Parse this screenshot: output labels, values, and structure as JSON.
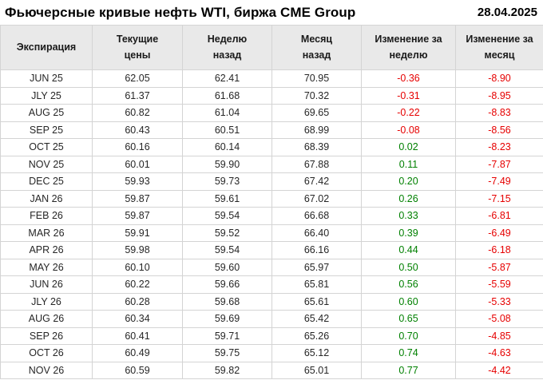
{
  "header": {
    "title": "Фьючерсные кривые нефть WTI, биржа CME Group",
    "date": "28.04.2025"
  },
  "colors": {
    "positive": "#008000",
    "negative": "#e60000",
    "header_bg": "#e9e9e9",
    "border": "#d4d4d4"
  },
  "table": {
    "columns": [
      "Экспирация",
      "Текущие\nцены",
      "Неделю\nназад",
      "Месяц\nназад",
      "Изменение за\nнеделю",
      "Изменение за\nмесяц"
    ],
    "rows": [
      [
        "JUN 25",
        "62.05",
        "62.41",
        "70.95",
        "-0.36",
        "-8.90"
      ],
      [
        "JLY 25",
        "61.37",
        "61.68",
        "70.32",
        "-0.31",
        "-8.95"
      ],
      [
        "AUG 25",
        "60.82",
        "61.04",
        "69.65",
        "-0.22",
        "-8.83"
      ],
      [
        "SEP 25",
        "60.43",
        "60.51",
        "68.99",
        "-0.08",
        "-8.56"
      ],
      [
        "OCT 25",
        "60.16",
        "60.14",
        "68.39",
        "0.02",
        "-8.23"
      ],
      [
        "NOV 25",
        "60.01",
        "59.90",
        "67.88",
        "0.11",
        "-7.87"
      ],
      [
        "DEC 25",
        "59.93",
        "59.73",
        "67.42",
        "0.20",
        "-7.49"
      ],
      [
        "JAN 26",
        "59.87",
        "59.61",
        "67.02",
        "0.26",
        "-7.15"
      ],
      [
        "FEB 26",
        "59.87",
        "59.54",
        "66.68",
        "0.33",
        "-6.81"
      ],
      [
        "MAR 26",
        "59.91",
        "59.52",
        "66.40",
        "0.39",
        "-6.49"
      ],
      [
        "APR 26",
        "59.98",
        "59.54",
        "66.16",
        "0.44",
        "-6.18"
      ],
      [
        "MAY 26",
        "60.10",
        "59.60",
        "65.97",
        "0.50",
        "-5.87"
      ],
      [
        "JUN 26",
        "60.22",
        "59.66",
        "65.81",
        "0.56",
        "-5.59"
      ],
      [
        "JLY 26",
        "60.28",
        "59.68",
        "65.61",
        "0.60",
        "-5.33"
      ],
      [
        "AUG 26",
        "60.34",
        "59.69",
        "65.42",
        "0.65",
        "-5.08"
      ],
      [
        "SEP 26",
        "60.41",
        "59.71",
        "65.26",
        "0.70",
        "-4.85"
      ],
      [
        "OCT 26",
        "60.49",
        "59.75",
        "65.12",
        "0.74",
        "-4.63"
      ],
      [
        "NOV 26",
        "60.59",
        "59.82",
        "65.01",
        "0.77",
        "-4.42"
      ]
    ]
  },
  "chart_data": {
    "type": "table",
    "title": "Фьючерсные кривые нефть WTI, биржа CME Group",
    "date": "28.04.2025",
    "categories": [
      "JUN 25",
      "JLY 25",
      "AUG 25",
      "SEP 25",
      "OCT 25",
      "NOV 25",
      "DEC 25",
      "JAN 26",
      "FEB 26",
      "MAR 26",
      "APR 26",
      "MAY 26",
      "JUN 26",
      "JLY 26",
      "AUG 26",
      "SEP 26",
      "OCT 26",
      "NOV 26"
    ],
    "series": [
      {
        "name": "Текущие цены",
        "values": [
          62.05,
          61.37,
          60.82,
          60.43,
          60.16,
          60.01,
          59.93,
          59.87,
          59.87,
          59.91,
          59.98,
          60.1,
          60.22,
          60.28,
          60.34,
          60.41,
          60.49,
          60.59
        ]
      },
      {
        "name": "Неделю назад",
        "values": [
          62.41,
          61.68,
          61.04,
          60.51,
          60.14,
          59.9,
          59.73,
          59.61,
          59.54,
          59.52,
          59.54,
          59.6,
          59.66,
          59.68,
          59.69,
          59.71,
          59.75,
          59.82
        ]
      },
      {
        "name": "Месяц назад",
        "values": [
          70.95,
          70.32,
          69.65,
          68.99,
          68.39,
          67.88,
          67.42,
          67.02,
          66.68,
          66.4,
          66.16,
          65.97,
          65.81,
          65.61,
          65.42,
          65.26,
          65.12,
          65.01
        ]
      },
      {
        "name": "Изменение за неделю",
        "values": [
          -0.36,
          -0.31,
          -0.22,
          -0.08,
          0.02,
          0.11,
          0.2,
          0.26,
          0.33,
          0.39,
          0.44,
          0.5,
          0.56,
          0.6,
          0.65,
          0.7,
          0.74,
          0.77
        ]
      },
      {
        "name": "Изменение за месяц",
        "values": [
          -8.9,
          -8.95,
          -8.83,
          -8.56,
          -8.23,
          -7.87,
          -7.49,
          -7.15,
          -6.81,
          -6.49,
          -6.18,
          -5.87,
          -5.59,
          -5.33,
          -5.08,
          -4.85,
          -4.63,
          -4.42
        ]
      }
    ]
  }
}
